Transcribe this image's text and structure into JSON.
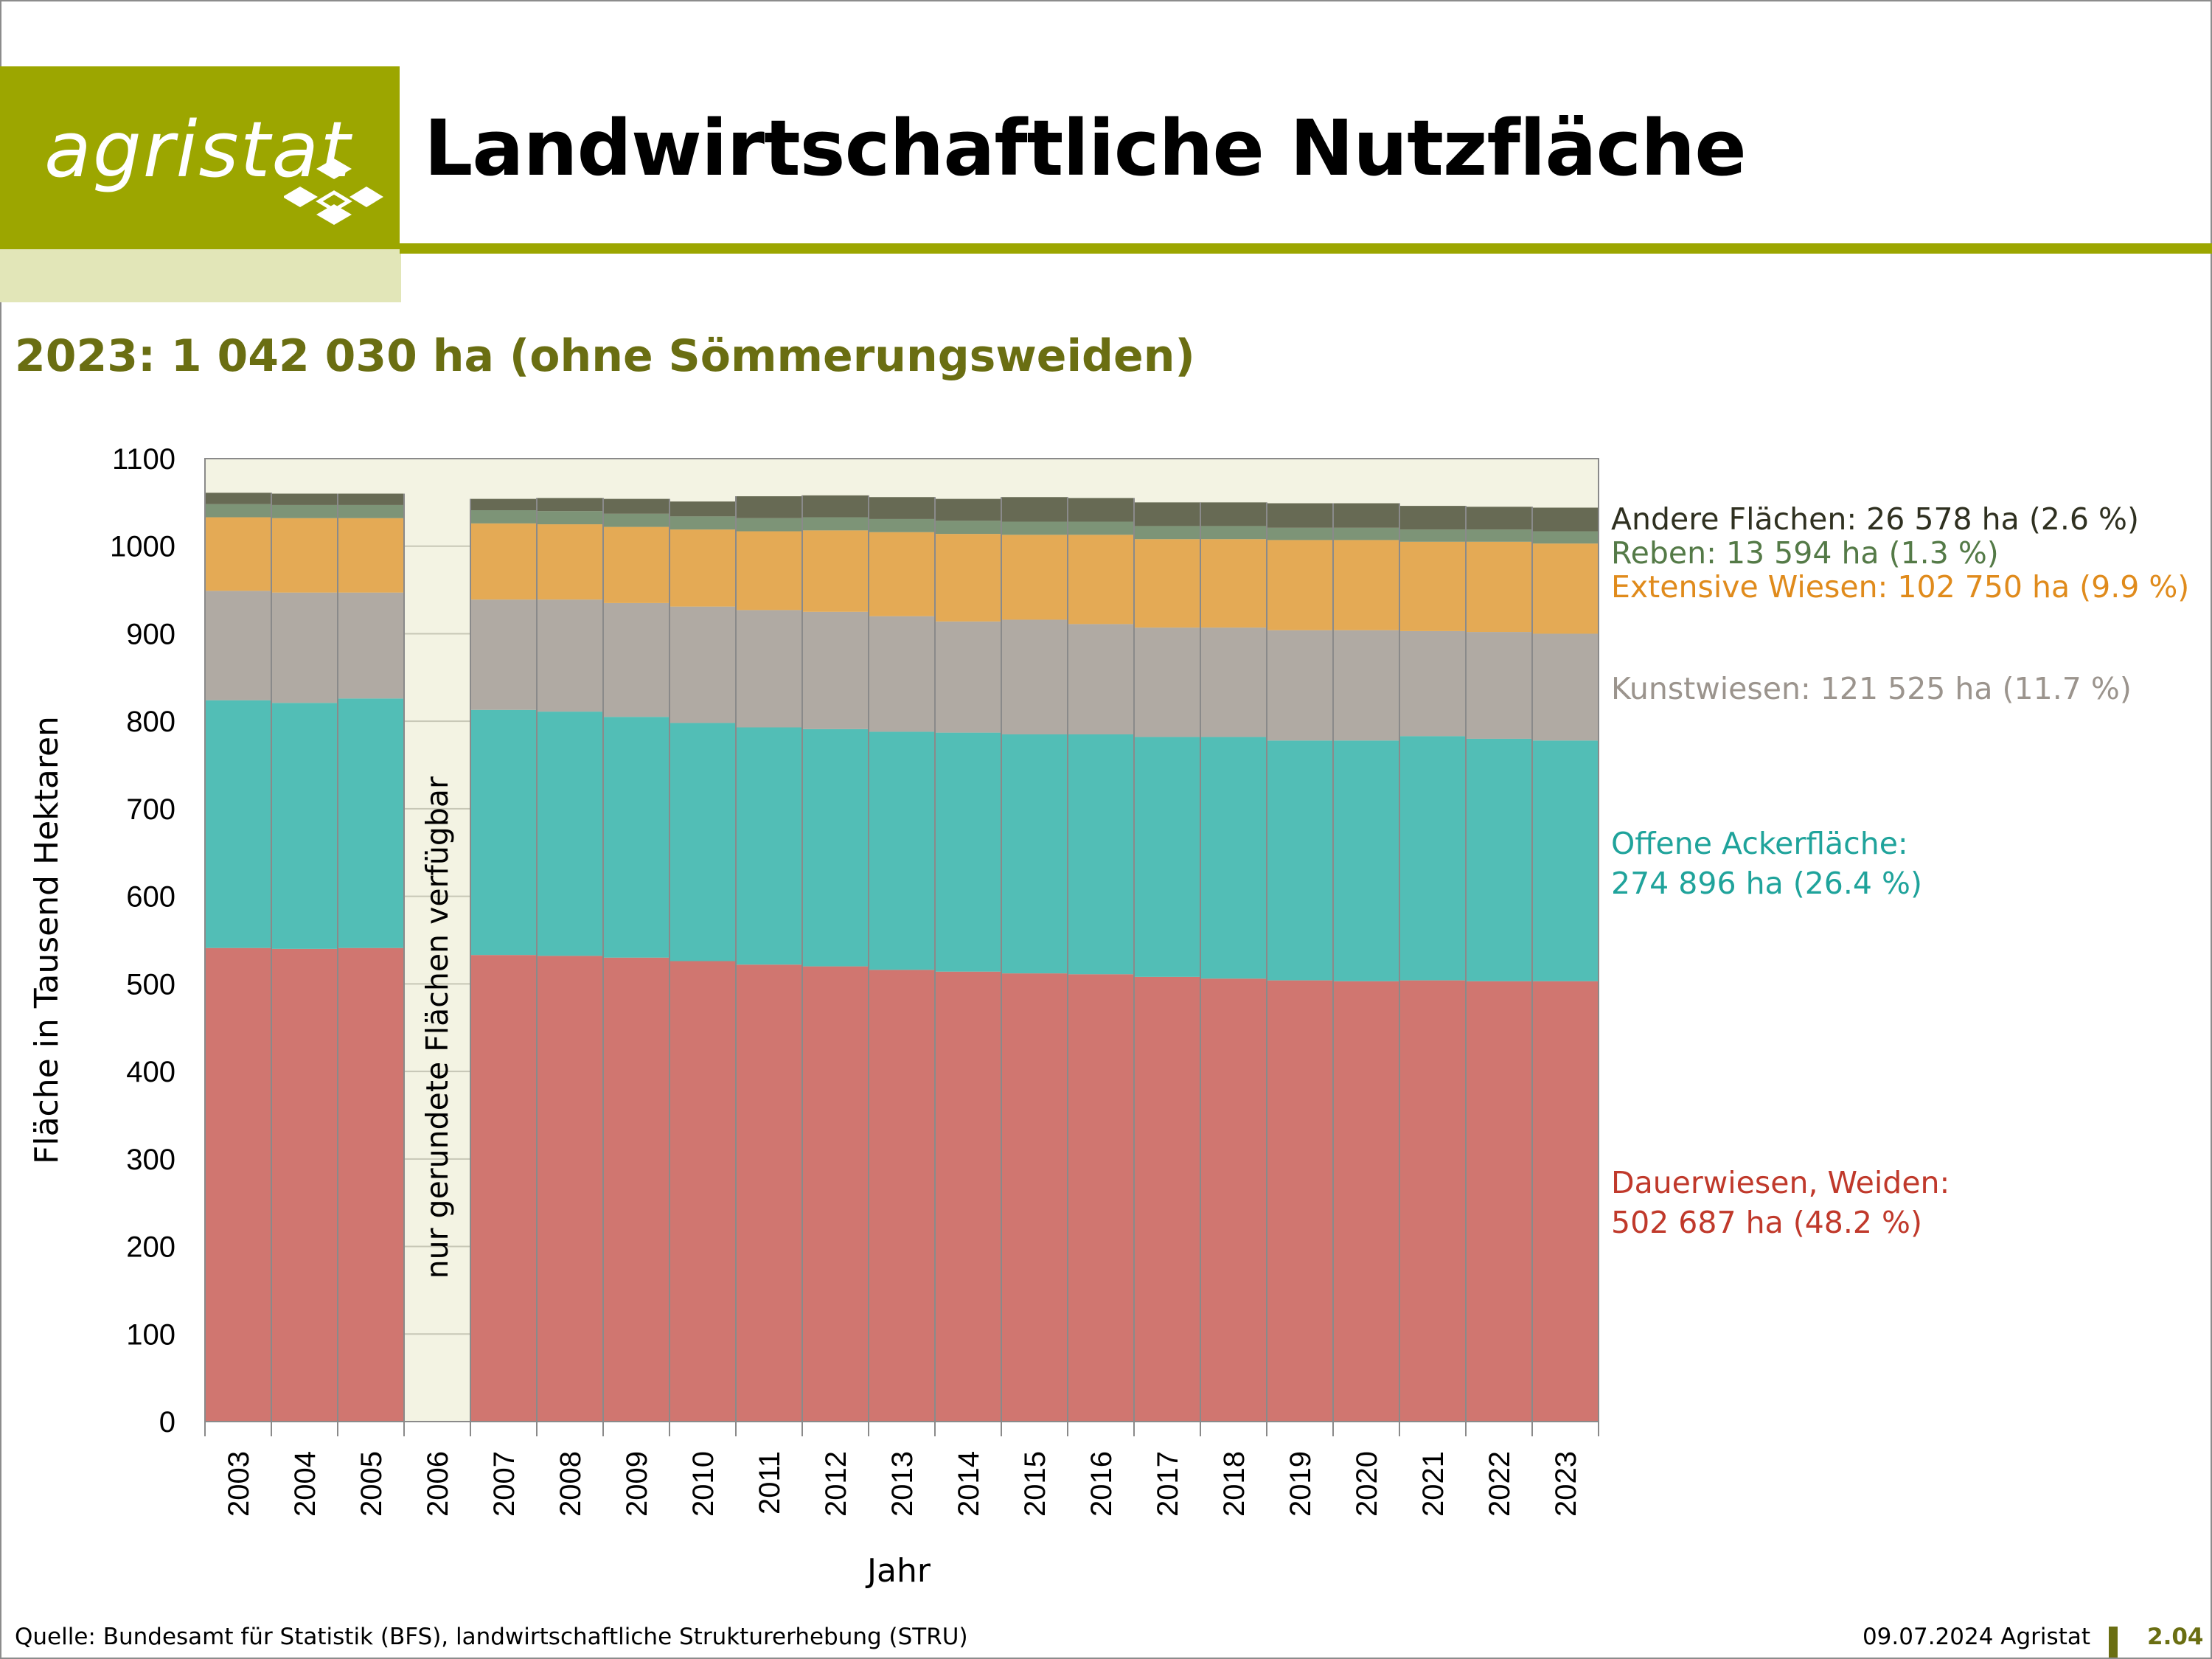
{
  "brand": {
    "name": "agristat"
  },
  "title": "Landwirtschaftliche Nutzfläche",
  "subtitle": "2023: 1 042 030 ha (ohne Sömmerungsweiden)",
  "footer": {
    "source": "Quelle: Bundesamt für Statistik (BFS), landwirtschaftliche Strukturerhebung (STRU)",
    "date": "09.07.2024 Agristat",
    "page": "2.04"
  },
  "colors": {
    "brand_green": "#9ca600",
    "dark_olive": "#6a6e12",
    "plot_background": "#f3f3e3"
  },
  "chart_data": {
    "type": "bar",
    "stacked": true,
    "ylabel": "Fläche in Tausend Hektaren",
    "xlabel": "Jahr",
    "ylim": [
      0,
      1100
    ],
    "yticks": [
      0,
      100,
      200,
      300,
      400,
      500,
      600,
      700,
      800,
      900,
      1000,
      1100
    ],
    "grid": true,
    "legend_position": "right",
    "categories": [
      "2003",
      "2004",
      "2005",
      "2006",
      "2007",
      "2008",
      "2009",
      "2010",
      "2011",
      "2012",
      "2013",
      "2014",
      "2015",
      "2016",
      "2017",
      "2018",
      "2019",
      "2020",
      "2021",
      "2022",
      "2023"
    ],
    "gap_annotation": {
      "category": "2006",
      "text": "nur gerundete Flächen verfügbar"
    },
    "series": [
      {
        "key": "dauerwiesen",
        "color": "#d07670",
        "label_color": "#c0392b",
        "legend": [
          "Dauerwiesen, Weiden:",
          "502 687 ha (48.2 %)"
        ],
        "values": [
          541,
          540,
          541,
          null,
          533,
          532,
          530,
          526,
          522,
          520,
          516,
          514,
          512,
          511,
          508,
          506,
          504,
          503,
          504,
          503,
          503
        ]
      },
      {
        "key": "offene_ackerflaeche",
        "color": "#52beb6",
        "label_color": "#1fa39b",
        "legend": [
          "Offene Ackerfläche:",
          "274 896 ha (26.4 %)"
        ],
        "values": [
          283,
          281,
          285,
          null,
          280,
          279,
          275,
          272,
          271,
          271,
          272,
          273,
          273,
          274,
          274,
          276,
          274,
          275,
          279,
          277,
          275
        ]
      },
      {
        "key": "kunstwiesen",
        "color": "#b0aaa3",
        "label_color": "#9b948d",
        "legend": [
          "Kunstwiesen: 121 525 ha (11.7 %)"
        ],
        "values": [
          125,
          126,
          121,
          null,
          126,
          128,
          130,
          133,
          134,
          134,
          132,
          127,
          131,
          126,
          125,
          125,
          126,
          126,
          120,
          122,
          122
        ]
      },
      {
        "key": "extensive_wiesen",
        "color": "#e4aa55",
        "label_color": "#e08b1c",
        "legend": [
          "Extensive Wiesen: 102 750 ha (9.9 %)"
        ],
        "values": [
          84,
          85,
          85,
          null,
          87,
          86,
          87,
          88,
          90,
          93,
          96,
          100,
          97,
          102,
          101,
          101,
          103,
          103,
          102,
          103,
          103
        ]
      },
      {
        "key": "reben",
        "color": "#7d9477",
        "label_color": "#547a47",
        "legend": [
          "Reben: 13 594 ha (1.3 %)"
        ],
        "values": [
          15,
          15,
          15,
          null,
          15,
          15,
          15,
          15,
          15,
          15,
          15,
          15,
          15,
          15,
          15,
          15,
          14,
          14,
          14,
          14,
          14
        ]
      },
      {
        "key": "andere_flaechen",
        "color": "#676a54",
        "label_color": "#2f3020",
        "legend": [
          "Andere Flächen: 26 578 ha (2.6 %)"
        ],
        "values": [
          13,
          13,
          13,
          null,
          13,
          15,
          17,
          17,
          25,
          25,
          25,
          25,
          28,
          27,
          27,
          27,
          28,
          28,
          27,
          26,
          27
        ]
      }
    ]
  }
}
